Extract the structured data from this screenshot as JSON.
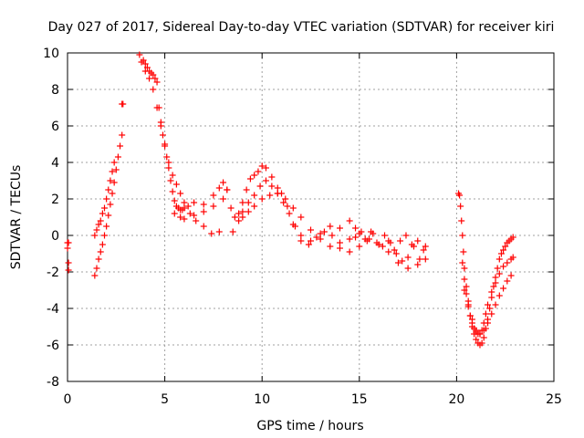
{
  "chart_data": {
    "type": "scatter",
    "title": "Day 027 of 2017, Sidereal Day-to-day VTEC variation (SDTVAR) for receiver kiri",
    "xlabel": "GPS time / hours",
    "ylabel": "SDTVAR / TECUs",
    "xlim": [
      0,
      25
    ],
    "ylim": [
      -8,
      10
    ],
    "xticks": [
      0,
      5,
      10,
      15,
      20,
      25
    ],
    "yticks": [
      -8,
      -6,
      -4,
      -2,
      0,
      2,
      4,
      6,
      8,
      10
    ],
    "x_tick_labels": [
      "0",
      "5",
      "10",
      "15",
      "20",
      "25"
    ],
    "y_tick_labels": [
      "-8",
      "-6",
      "-4",
      "-2",
      "0",
      "2",
      "4",
      "6",
      "8",
      "10"
    ],
    "grid": true,
    "marker": "plus",
    "marker_color": "#ff0000",
    "series": [
      {
        "name": "SDTVAR",
        "x": [
          0.0,
          0.0,
          0.05,
          0.05,
          0.05,
          1.4,
          1.5,
          1.6,
          1.7,
          1.8,
          1.9,
          2.0,
          2.1,
          2.2,
          2.3,
          2.4,
          2.5,
          2.6,
          2.7,
          2.8,
          1.4,
          1.5,
          1.6,
          1.7,
          1.8,
          1.9,
          2.0,
          2.1,
          2.2,
          2.3,
          2.4,
          2.8,
          2.85,
          3.7,
          3.8,
          3.9,
          4.0,
          4.1,
          4.2,
          4.3,
          4.4,
          4.5,
          4.6,
          4.7,
          4.8,
          4.9,
          5.0,
          5.1,
          5.2,
          5.3,
          5.4,
          5.5,
          5.6,
          5.7,
          5.8,
          5.9,
          6.0,
          6.2,
          6.5,
          7.0,
          7.5,
          7.8,
          8.0,
          4.0,
          4.2,
          4.4,
          4.6,
          4.8,
          5.0,
          5.2,
          5.4,
          5.6,
          5.8,
          6.0,
          6.3,
          6.6,
          7.0,
          7.4,
          7.8,
          5.5,
          5.8,
          6.0,
          6.5,
          7.0,
          7.5,
          8.0,
          8.2,
          8.2,
          8.4,
          8.6,
          8.8,
          9.0,
          9.2,
          9.4,
          9.6,
          9.8,
          10.0,
          10.2,
          10.5,
          10.8,
          11.0,
          11.3,
          11.6,
          12.0,
          12.5,
          13.0,
          13.5,
          14.0,
          14.5,
          8.5,
          8.8,
          9.0,
          9.3,
          9.6,
          9.9,
          10.2,
          10.5,
          10.8,
          11.1,
          11.4,
          11.7,
          12.0,
          12.4,
          12.8,
          13.2,
          13.6,
          14.0,
          9.0,
          9.3,
          9.6,
          10.0,
          10.4,
          10.8,
          11.2,
          11.6,
          12.0,
          12.5,
          13.0,
          13.5,
          14.0,
          14.5,
          14.5,
          14.8,
          15.0,
          15.3,
          15.6,
          15.9,
          16.2,
          16.5,
          16.8,
          17.1,
          17.4,
          17.7,
          18.0,
          18.3,
          14.8,
          15.1,
          15.4,
          15.7,
          16.0,
          16.3,
          16.6,
          16.9,
          17.2,
          17.5,
          17.8,
          18.1,
          18.4,
          15.0,
          15.5,
          16.0,
          16.5,
          17.0,
          17.5,
          18.0,
          18.4,
          20.1,
          20.15,
          20.2,
          20.25,
          20.3,
          20.35,
          20.4,
          20.5,
          20.6,
          20.7,
          20.8,
          20.9,
          21.0,
          21.1,
          21.2,
          21.3,
          21.4,
          21.5,
          21.6,
          21.7,
          21.8,
          21.9,
          22.0,
          22.1,
          22.2,
          22.3,
          22.4,
          22.5,
          22.6,
          22.7,
          22.8,
          22.9,
          20.3,
          20.4,
          20.5,
          20.6,
          20.7,
          20.8,
          20.9,
          21.0,
          21.1,
          21.2,
          21.3,
          21.4,
          21.5,
          21.6,
          21.8,
          22.0,
          22.2,
          22.4,
          22.6,
          22.8,
          22.9,
          20.4,
          20.6,
          20.8,
          21.0,
          21.2,
          21.4,
          21.6,
          21.8,
          22.0,
          22.2,
          22.4,
          22.6,
          22.8
        ],
        "y": [
          -0.4,
          -0.7,
          -1.5,
          -1.9,
          -0.4,
          -2.2,
          -1.8,
          -1.3,
          -0.9,
          -0.5,
          0.0,
          0.5,
          1.1,
          1.7,
          2.3,
          2.9,
          3.6,
          4.3,
          4.9,
          5.5,
          0.0,
          0.3,
          0.6,
          0.8,
          1.2,
          1.5,
          2.0,
          2.5,
          3.0,
          3.5,
          4.0,
          7.2,
          7.2,
          9.9,
          9.5,
          9.6,
          9.4,
          9.2,
          9.0,
          8.9,
          8.8,
          8.6,
          8.4,
          7.0,
          6.2,
          5.5,
          4.9,
          4.3,
          3.7,
          3.0,
          2.4,
          1.9,
          1.6,
          1.5,
          1.4,
          1.4,
          1.5,
          1.6,
          1.8,
          1.7,
          2.2,
          2.6,
          2.9,
          9.0,
          8.6,
          8.0,
          7.0,
          6.0,
          5.0,
          4.0,
          3.3,
          2.8,
          2.3,
          1.8,
          1.2,
          0.8,
          0.5,
          0.1,
          0.2,
          1.2,
          1.0,
          0.9,
          1.1,
          1.3,
          1.6,
          2.0,
          2.5,
          2.5,
          1.5,
          1.0,
          1.2,
          1.8,
          2.5,
          3.1,
          3.3,
          3.5,
          3.8,
          3.7,
          3.2,
          2.6,
          2.3,
          1.6,
          0.6,
          0.0,
          -0.3,
          0.1,
          0.5,
          0.4,
          -0.2,
          0.2,
          0.8,
          1.3,
          1.8,
          2.2,
          2.7,
          3.0,
          2.7,
          2.3,
          1.8,
          1.2,
          0.5,
          -0.3,
          -0.5,
          -0.1,
          0.2,
          0.0,
          -0.4,
          1.0,
          1.3,
          1.6,
          2.0,
          2.2,
          2.3,
          2.0,
          1.5,
          1.0,
          0.3,
          -0.2,
          -0.6,
          -0.7,
          -0.9,
          0.8,
          0.4,
          0.1,
          -0.2,
          0.2,
          -0.4,
          -0.6,
          -0.3,
          -0.8,
          -0.3,
          0.0,
          -0.5,
          -0.3,
          -0.8,
          -0.1,
          0.2,
          -0.3,
          0.1,
          -0.5,
          0.0,
          -0.4,
          -1.0,
          -1.4,
          -1.2,
          -0.6,
          -1.3,
          -0.6,
          -0.6,
          -0.2,
          -0.5,
          -0.9,
          -1.5,
          -1.8,
          -1.6,
          -1.3,
          2.3,
          2.2,
          1.6,
          0.8,
          0.0,
          -0.9,
          -1.8,
          -2.8,
          -3.6,
          -4.4,
          -5.0,
          -5.4,
          -5.7,
          -5.9,
          -6.0,
          -5.9,
          -5.6,
          -5.1,
          -4.6,
          -4.0,
          -3.4,
          -2.8,
          -2.3,
          -1.8,
          -1.3,
          -1.0,
          -0.8,
          -0.6,
          -0.4,
          -0.3,
          -0.2,
          -0.1,
          -1.5,
          -2.4,
          -3.2,
          -3.9,
          -4.4,
          -4.8,
          -5.1,
          -5.3,
          -5.4,
          -5.4,
          -5.2,
          -4.8,
          -4.3,
          -3.8,
          -3.1,
          -2.6,
          -2.1,
          -1.7,
          -1.5,
          -1.3,
          -1.2,
          -3.0,
          -3.8,
          -4.6,
          -5.2,
          -5.4,
          -5.2,
          -4.8,
          -4.3,
          -3.8,
          -3.3,
          -2.9,
          -2.5,
          -2.2
        ]
      }
    ]
  }
}
